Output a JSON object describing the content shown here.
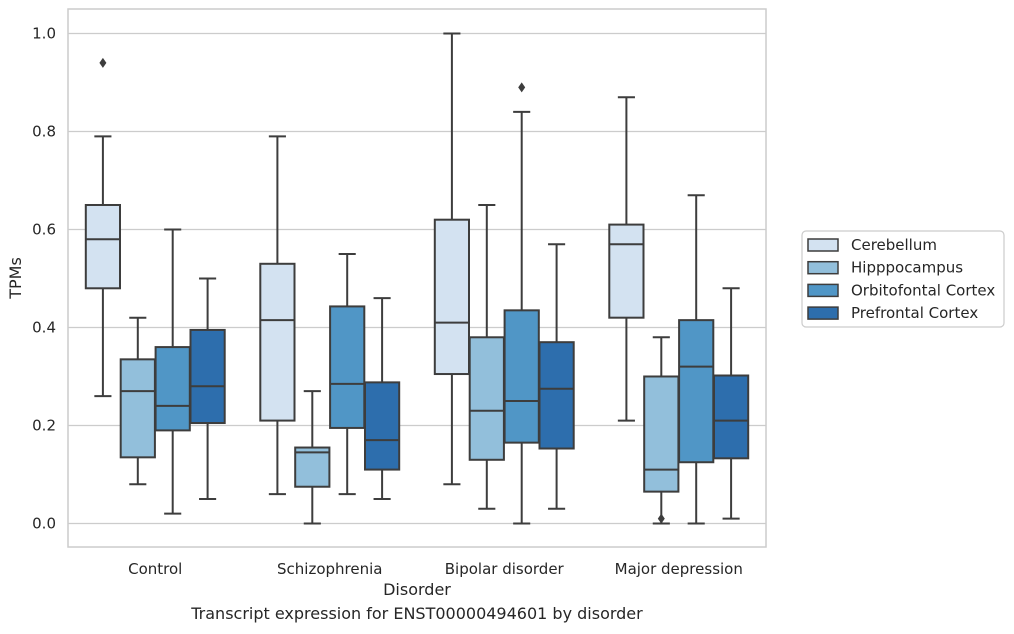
{
  "caption": "Transcript expression for ENST00000494601 by disorder",
  "chart_data": {
    "type": "box",
    "xlabel": "Disorder",
    "ylabel": "TPMs",
    "ylim": [
      -0.048,
      1.05
    ],
    "yticks": [
      0.0,
      0.2,
      0.4,
      0.6,
      0.8,
      1.0
    ],
    "ytick_labels": [
      "0.0",
      "0.2",
      "0.4",
      "0.6",
      "0.8",
      "1.0"
    ],
    "grid": true,
    "legend_position": "right",
    "categories": [
      "Control",
      "Schizophrenia",
      "Bipolar disorder",
      "Major depression"
    ],
    "series": [
      {
        "name": "Cerebellum",
        "color": "#d3e2f1",
        "boxes": [
          {
            "whislo": 0.26,
            "q1": 0.48,
            "med": 0.58,
            "q3": 0.65,
            "whishi": 0.79,
            "fliers": [
              0.94
            ]
          },
          {
            "whislo": 0.06,
            "q1": 0.21,
            "med": 0.415,
            "q3": 0.53,
            "whishi": 0.79,
            "fliers": []
          },
          {
            "whislo": 0.08,
            "q1": 0.305,
            "med": 0.41,
            "q3": 0.62,
            "whishi": 1.0,
            "fliers": []
          },
          {
            "whislo": 0.21,
            "q1": 0.42,
            "med": 0.57,
            "q3": 0.61,
            "whishi": 0.87,
            "fliers": []
          }
        ]
      },
      {
        "name": "Hipppocampus",
        "color": "#92bfdb",
        "boxes": [
          {
            "whislo": 0.08,
            "q1": 0.135,
            "med": 0.27,
            "q3": 0.335,
            "whishi": 0.42,
            "fliers": []
          },
          {
            "whislo": 0.0,
            "q1": 0.075,
            "med": 0.145,
            "q3": 0.155,
            "whishi": 0.27,
            "fliers": []
          },
          {
            "whislo": 0.03,
            "q1": 0.13,
            "med": 0.23,
            "q3": 0.38,
            "whishi": 0.65,
            "fliers": []
          },
          {
            "whislo": 0.0,
            "q1": 0.065,
            "med": 0.11,
            "q3": 0.3,
            "whishi": 0.38,
            "fliers": [
              0.01
            ]
          }
        ]
      },
      {
        "name": "Orbitofontal Cortex",
        "color": "#5096c6",
        "boxes": [
          {
            "whislo": 0.02,
            "q1": 0.19,
            "med": 0.24,
            "q3": 0.36,
            "whishi": 0.6,
            "fliers": []
          },
          {
            "whislo": 0.06,
            "q1": 0.195,
            "med": 0.285,
            "q3": 0.443,
            "whishi": 0.55,
            "fliers": []
          },
          {
            "whislo": 0.0,
            "q1": 0.165,
            "med": 0.25,
            "q3": 0.435,
            "whishi": 0.84,
            "fliers": [
              0.89
            ]
          },
          {
            "whislo": 0.0,
            "q1": 0.125,
            "med": 0.32,
            "q3": 0.415,
            "whishi": 0.67,
            "fliers": []
          }
        ]
      },
      {
        "name": "Prefrontal Cortex",
        "color": "#2d6ead",
        "boxes": [
          {
            "whislo": 0.05,
            "q1": 0.205,
            "med": 0.28,
            "q3": 0.395,
            "whishi": 0.5,
            "fliers": []
          },
          {
            "whislo": 0.05,
            "q1": 0.11,
            "med": 0.17,
            "q3": 0.288,
            "whishi": 0.46,
            "fliers": []
          },
          {
            "whislo": 0.03,
            "q1": 0.153,
            "med": 0.275,
            "q3": 0.37,
            "whishi": 0.57,
            "fliers": []
          },
          {
            "whislo": 0.01,
            "q1": 0.133,
            "med": 0.21,
            "q3": 0.302,
            "whishi": 0.48,
            "fliers": []
          }
        ]
      }
    ]
  }
}
